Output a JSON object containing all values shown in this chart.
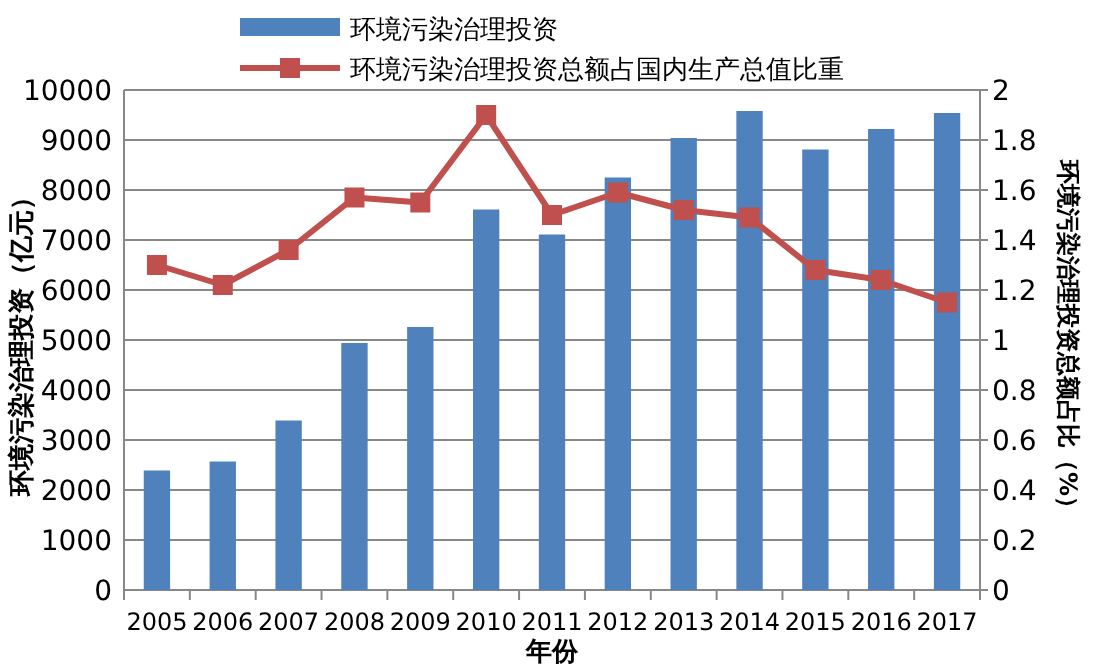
{
  "chart_data": {
    "type": "bar",
    "xlabel": "年份",
    "ylabel": "环境污染治理投资（亿元）",
    "y2label": "环境污染治理投资总额占比（%）",
    "categories": [
      "2005",
      "2006",
      "2007",
      "2008",
      "2009",
      "2010",
      "2011",
      "2012",
      "2013",
      "2014",
      "2015",
      "2016",
      "2017"
    ],
    "series": [
      {
        "name": "环境污染治理投资",
        "color": "#4f81bd",
        "values": [
          2390,
          2570,
          3390,
          4940,
          5260,
          7610,
          7110,
          8250,
          9040,
          9580,
          8810,
          9220,
          9540
        ]
      },
      {
        "name": "环境污染治理投资总额占国内生产总值比重",
        "type": "line",
        "axis": "y2",
        "color": "#c0504d",
        "marker": "square",
        "values": [
          1.3,
          1.22,
          1.36,
          1.57,
          1.55,
          1.9,
          1.5,
          1.59,
          1.52,
          1.49,
          1.28,
          1.24,
          1.15
        ]
      }
    ],
    "ylim": [
      0,
      10000
    ],
    "yticks": [
      0,
      1000,
      2000,
      3000,
      4000,
      5000,
      6000,
      7000,
      8000,
      9000,
      10000
    ],
    "y2lim": [
      0,
      2
    ],
    "y2ticks": [
      0,
      0.2,
      0.4,
      0.6,
      0.8,
      1,
      1.2,
      1.4,
      1.6,
      1.8,
      2
    ],
    "grid": "y",
    "legend": "top"
  }
}
